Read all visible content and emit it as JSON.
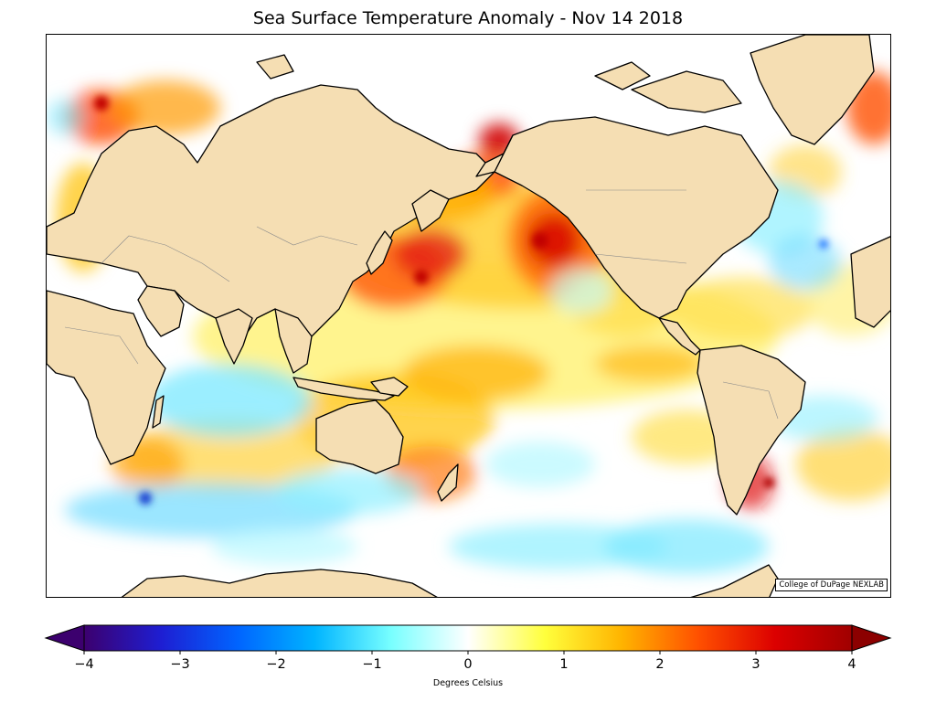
{
  "title": "Sea Surface Temperature Anomaly - Nov 14 2018",
  "credit": "College of DuPage NEXLAB",
  "colorbar": {
    "label": "Degrees Celsius",
    "ticks": [
      {
        "value": -4,
        "label": "−4"
      },
      {
        "value": -3,
        "label": "−3"
      },
      {
        "value": -2,
        "label": "−2"
      },
      {
        "value": -1,
        "label": "−1"
      },
      {
        "value": 0,
        "label": "0"
      },
      {
        "value": 1,
        "label": "1"
      },
      {
        "value": 2,
        "label": "2"
      },
      {
        "value": 3,
        "label": "3"
      },
      {
        "value": 4,
        "label": "4"
      }
    ],
    "range": [
      -4,
      4
    ],
    "extend": "both",
    "colors": [
      "#3c006e",
      "#1e1ed2",
      "#0064ff",
      "#00b4ff",
      "#78ffff",
      "#ffffff",
      "#ffff3c",
      "#ffb400",
      "#ff5000",
      "#dc0000",
      "#8c0000"
    ]
  },
  "map": {
    "projection": "Pacific-centered equirectangular",
    "land_color": "#f5deb3",
    "ocean_base": "#ffffff"
  }
}
